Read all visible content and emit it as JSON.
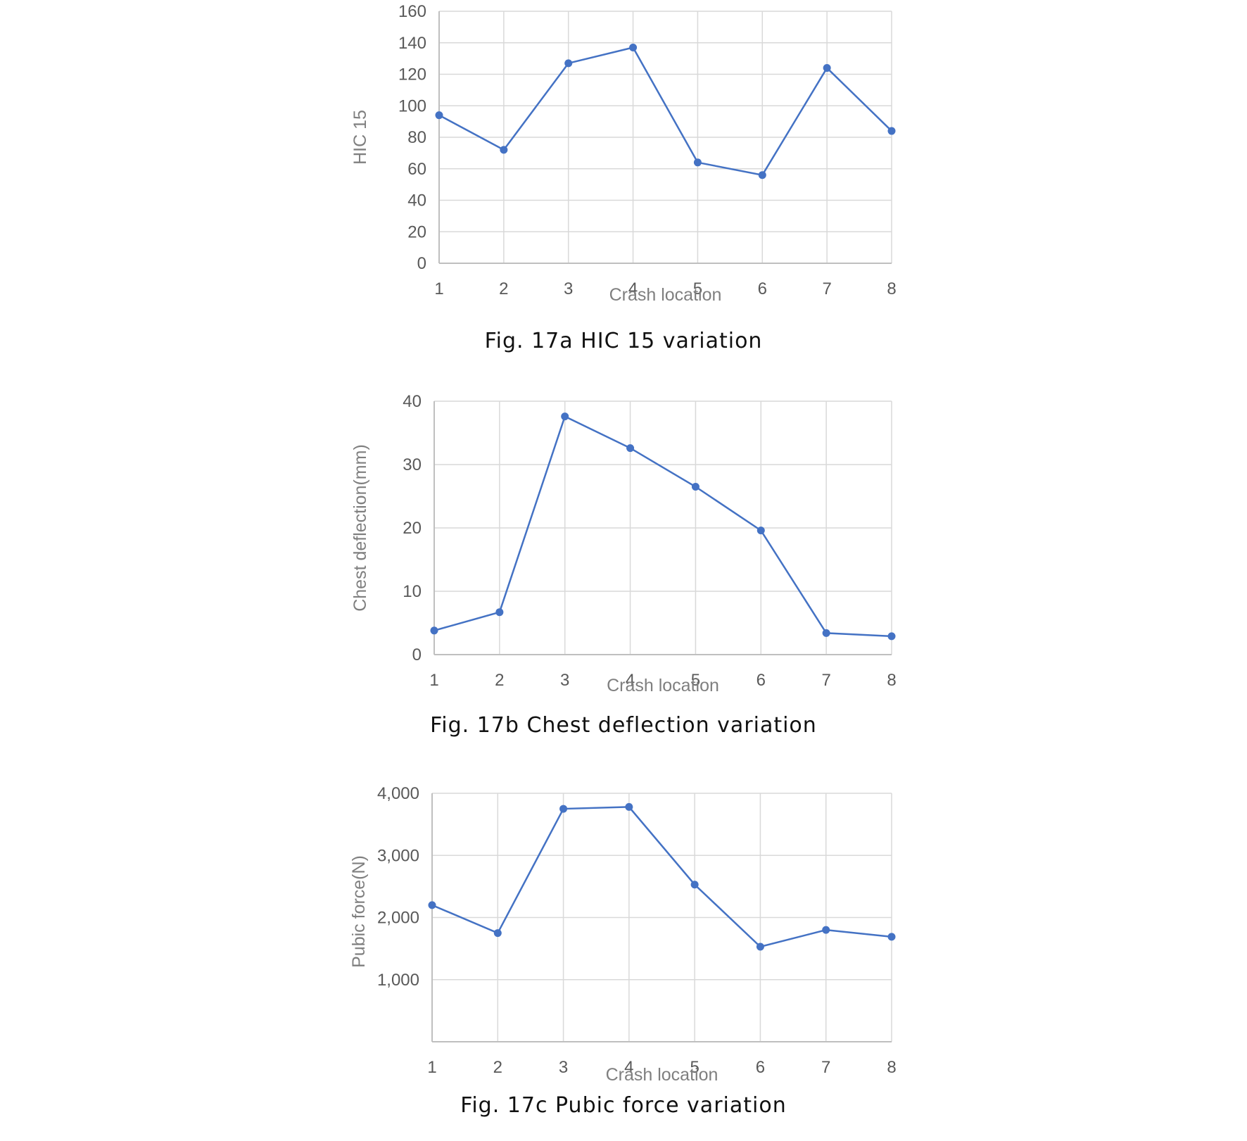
{
  "accent_color": "#4472c4",
  "figures": [
    {
      "caption": "Fig. 17a HIC 15 variation",
      "chart_data": {
        "type": "line",
        "x": [
          1,
          2,
          3,
          4,
          5,
          6,
          7,
          8
        ],
        "series": [
          {
            "values": [
              94,
              72,
              127,
              137,
              64,
              56,
              124,
              84
            ]
          }
        ],
        "xlabel": "Crash location",
        "ylabel": "HIC 15",
        "ylim": [
          0,
          160
        ],
        "yticks": [
          0,
          20,
          40,
          60,
          80,
          100,
          120,
          140,
          160
        ],
        "ytick_labels": [
          "0",
          "20",
          "40",
          "60",
          "80",
          "100",
          "120",
          "140",
          "160"
        ],
        "xtick_labels": [
          "1",
          "2",
          "3",
          "4",
          "5",
          "6",
          "7",
          "8"
        ],
        "grid": true
      }
    },
    {
      "caption": "Fig. 17b Chest deflection variation",
      "chart_data": {
        "type": "line",
        "x": [
          1,
          2,
          3,
          4,
          5,
          6,
          7,
          8
        ],
        "series": [
          {
            "values": [
              3.8,
              6.7,
              37.6,
              32.6,
              26.5,
              19.6,
              3.4,
              2.9
            ]
          }
        ],
        "xlabel": "Crash location",
        "ylabel": "Chest deflection(mm)",
        "ylim": [
          0,
          40
        ],
        "yticks": [
          0,
          10,
          20,
          30,
          40
        ],
        "ytick_labels": [
          "0",
          "10",
          "20",
          "30",
          "40"
        ],
        "xtick_labels": [
          "1",
          "2",
          "3",
          "4",
          "5",
          "6",
          "7",
          "8"
        ],
        "grid": true
      }
    },
    {
      "caption": "Fig. 17c Pubic force variation",
      "chart_data": {
        "type": "line",
        "x": [
          1,
          2,
          3,
          4,
          5,
          6,
          7,
          8
        ],
        "series": [
          {
            "values": [
              2200,
              1750,
              3750,
              3780,
              2530,
              1530,
              1800,
              1690
            ]
          }
        ],
        "xlabel": "Crash location",
        "ylabel": "Pubic force(N)",
        "ylim": [
          0,
          4000
        ],
        "yticks": [
          1000,
          2000,
          3000,
          4000
        ],
        "ytick_labels": [
          "1,000",
          "2,000",
          "3,000",
          "4,000"
        ],
        "xtick_labels": [
          "1",
          "2",
          "3",
          "4",
          "5",
          "6",
          "7",
          "8"
        ],
        "grid": true
      }
    }
  ]
}
